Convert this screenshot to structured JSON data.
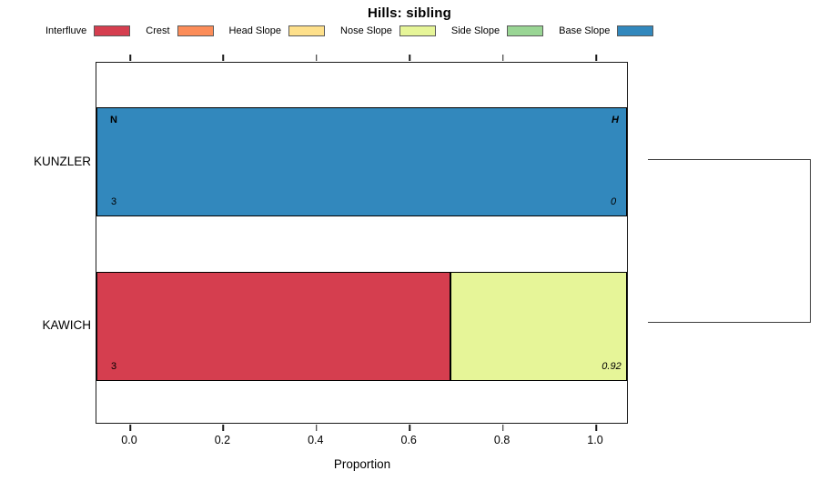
{
  "title": "Hills: sibling",
  "legend": {
    "items": [
      {
        "label": "Interfluve",
        "color": "#D53E4F"
      },
      {
        "label": "Crest",
        "color": "#FC8D59"
      },
      {
        "label": "Head Slope",
        "color": "#FEE08B"
      },
      {
        "label": "Nose Slope",
        "color": "#E6F598"
      },
      {
        "label": "Side Slope",
        "color": "#99D594"
      },
      {
        "label": "Base Slope",
        "color": "#3288BD"
      }
    ]
  },
  "chart_data": {
    "type": "bar",
    "orientation": "horizontal",
    "stacked": true,
    "title": "Hills: sibling",
    "xlabel": "Proportion",
    "xlim": [
      0,
      1
    ],
    "x_ticks": [
      0.0,
      0.2,
      0.4,
      0.6,
      0.8,
      1.0
    ],
    "x_tick_labels": [
      "0.0",
      "0.2",
      "0.4",
      "0.6",
      "0.8",
      "1.0"
    ],
    "grid": false,
    "legend_position": "top",
    "series_names": [
      "Interfluve",
      "Crest",
      "Head Slope",
      "Nose Slope",
      "Side Slope",
      "Base Slope"
    ],
    "categories": [
      "KUNZLER",
      "KAWICH"
    ],
    "rows": [
      {
        "label": "KUNZLER",
        "segments": [
          {
            "name": "Base Slope",
            "value": 1.0,
            "color": "#3288BD"
          }
        ],
        "n_header": "N",
        "n_value": "3",
        "h_header": "H",
        "h_value": "0"
      },
      {
        "label": "KAWICH",
        "segments": [
          {
            "name": "Interfluve",
            "value": 0.667,
            "color": "#D53E4F"
          },
          {
            "name": "Nose Slope",
            "value": 0.333,
            "color": "#E6F598"
          }
        ],
        "n_value": "3",
        "h_value": "0.92"
      }
    ],
    "right_annotation": "cluster-dendrogram-bracket"
  }
}
